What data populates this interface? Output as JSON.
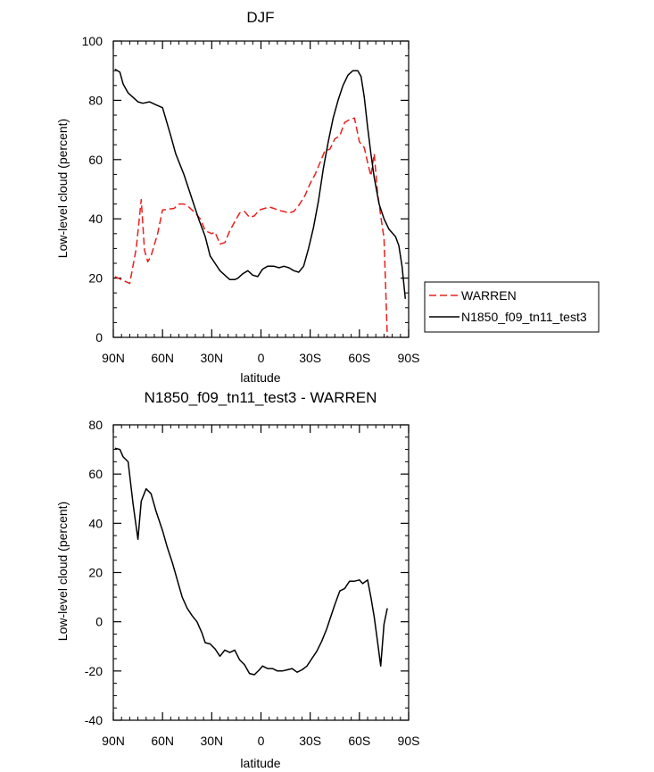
{
  "chart_data": [
    {
      "type": "line",
      "title": "DJF",
      "xlabel": "latitude",
      "ylabel": "Low-level cloud (percent)",
      "xlim": [
        90,
        -90
      ],
      "ylim": [
        0,
        100
      ],
      "x_ticks": [
        {
          "v": 90,
          "label": "90N"
        },
        {
          "v": 60,
          "label": "60N"
        },
        {
          "v": 30,
          "label": "30N"
        },
        {
          "v": 0,
          "label": "0"
        },
        {
          "v": -30,
          "label": "30S"
        },
        {
          "v": -60,
          "label": "60S"
        },
        {
          "v": -90,
          "label": "90S"
        }
      ],
      "y_ticks": [
        0,
        20,
        40,
        60,
        80,
        100
      ],
      "legend": [
        "WARREN",
        "N1850_f09_tn11_test3"
      ],
      "series": [
        {
          "name": "WARREN",
          "color": "#e8201d",
          "dash": "dashed",
          "x": [
            89,
            80,
            76,
            73,
            71,
            69,
            67,
            63,
            60,
            56,
            53,
            50,
            47,
            44,
            40,
            37,
            34,
            30,
            28,
            25,
            22,
            19,
            16,
            13,
            10,
            7,
            4,
            1,
            -2,
            -5,
            -8,
            -11,
            -14,
            -17,
            -20,
            -23,
            -27,
            -30,
            -33,
            -36,
            -39,
            -42,
            -45,
            -48,
            -51,
            -54,
            -57,
            -60,
            -63,
            -65,
            -67,
            -69,
            -71,
            -73,
            -75,
            -77
          ],
          "y": [
            20.5,
            18.2,
            30,
            46.5,
            29.5,
            25.5,
            27.5,
            35,
            43,
            43.3,
            43.5,
            45,
            45,
            44,
            42,
            40,
            36,
            35,
            35.5,
            31.5,
            32,
            36,
            39,
            42,
            42.5,
            40.5,
            41,
            43,
            43.5,
            44,
            43.5,
            42.8,
            42.5,
            42,
            42.5,
            44.5,
            48,
            52,
            55,
            59,
            63,
            63.5,
            67,
            68,
            72.5,
            73.5,
            74,
            66,
            64,
            59,
            54.5,
            62,
            49,
            41,
            33.5,
            0
          ]
        },
        {
          "name": "N1850_f09_tn11_test3",
          "color": "#000000",
          "dash": "solid",
          "x": [
            89,
            86,
            84,
            81,
            78,
            75,
            72,
            68,
            64,
            60,
            55,
            52,
            47,
            44,
            41,
            38,
            34,
            31,
            28,
            25,
            22,
            19,
            16,
            14,
            11,
            8,
            5,
            2,
            -1,
            -4,
            -8,
            -11,
            -14,
            -17,
            -20,
            -23,
            -26,
            -29,
            -32,
            -35,
            -38,
            -41,
            -44,
            -47,
            -50,
            -53,
            -56,
            -59,
            -61,
            -63,
            -65,
            -67,
            -69,
            -72,
            -75,
            -78,
            -82,
            -84,
            -86,
            -88
          ],
          "y": [
            90.5,
            89.5,
            85.5,
            82.5,
            81,
            79.5,
            79,
            79.5,
            78.5,
            77.5,
            68,
            62,
            55,
            50,
            45,
            40,
            34,
            27.5,
            25,
            22.5,
            21,
            19.5,
            19.5,
            20,
            21.5,
            22.5,
            21,
            20.5,
            23,
            24,
            24,
            23.5,
            24,
            23.5,
            22.5,
            22,
            24,
            30,
            37,
            46,
            57,
            66,
            74,
            80,
            85,
            88.5,
            90,
            90,
            88,
            81,
            71,
            62,
            54,
            45,
            40,
            36.5,
            34,
            31,
            24,
            13
          ]
        }
      ]
    },
    {
      "type": "line",
      "title": "N1850_f09_tn11_test3 - WARREN",
      "xlabel": "latitude",
      "ylabel": "Low-level cloud (percent)",
      "xlim": [
        90,
        -90
      ],
      "ylim": [
        -40,
        80
      ],
      "x_ticks": [
        {
          "v": 90,
          "label": "90N"
        },
        {
          "v": 60,
          "label": "60N"
        },
        {
          "v": 30,
          "label": "30N"
        },
        {
          "v": 0,
          "label": "0"
        },
        {
          "v": -30,
          "label": "30S"
        },
        {
          "v": -60,
          "label": "60S"
        },
        {
          "v": -90,
          "label": "90S"
        }
      ],
      "y_ticks": [
        -40,
        -20,
        0,
        20,
        40,
        60,
        80
      ],
      "series": [
        {
          "name": "N1850_f09_tn11_test3 - WARREN",
          "color": "#000000",
          "dash": "solid",
          "x": [
            89,
            86,
            84,
            81,
            78,
            75,
            73,
            70,
            67,
            64,
            60,
            57,
            54,
            51,
            48,
            45,
            42,
            39,
            36,
            34,
            31,
            28,
            25,
            22,
            19,
            16,
            13,
            10,
            7,
            4,
            1,
            -1,
            -4,
            -7,
            -10,
            -13,
            -16,
            -19,
            -22,
            -25,
            -28,
            -31,
            -34,
            -37,
            -40,
            -43,
            -45,
            -48,
            -51,
            -54,
            -57,
            -60,
            -62,
            -65,
            -67,
            -69,
            -71,
            -73,
            -75,
            -77
          ],
          "y": [
            70.5,
            70,
            67,
            65,
            48,
            33.5,
            49,
            54,
            52,
            45,
            37,
            30,
            24,
            17,
            10,
            5.5,
            2.5,
            0,
            -4.5,
            -8.5,
            -9,
            -11,
            -14,
            -11.5,
            -12.5,
            -11.5,
            -15.5,
            -17.5,
            -21,
            -21.5,
            -19.5,
            -18,
            -19,
            -19,
            -20,
            -20,
            -19.5,
            -19,
            -20.5,
            -19.5,
            -18,
            -15,
            -12,
            -8,
            -3,
            3,
            7,
            12.5,
            13.5,
            16.5,
            16.5,
            17,
            15.5,
            17,
            10,
            2,
            -8,
            -18,
            -1,
            5.5
          ]
        }
      ]
    }
  ]
}
